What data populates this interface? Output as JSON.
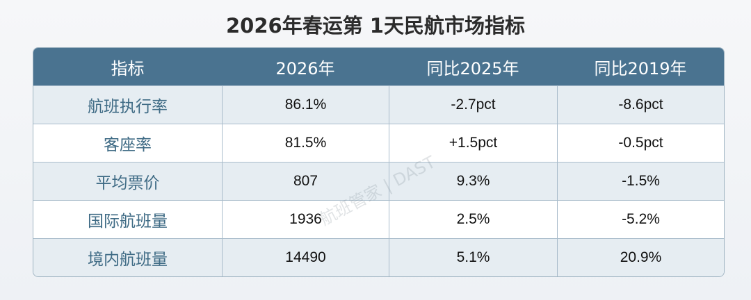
{
  "header": {
    "title": "2026年春运第 1天民航市场指标"
  },
  "table": {
    "columns": [
      "指标",
      "2026年",
      "同比2025年",
      "同比2019年"
    ],
    "rows": [
      [
        "航班执行率",
        "86.1%",
        "-2.7pct",
        "-8.6pct"
      ],
      [
        "客座率",
        "81.5%",
        "+1.5pct",
        "-0.5pct"
      ],
      [
        "平均票价",
        "807",
        "9.3%",
        "-1.5%"
      ],
      [
        "国际航班量",
        "1936",
        "2.5%",
        "-5.2%"
      ],
      [
        "境内航班量",
        "14490",
        "5.1%",
        "20.9%"
      ]
    ]
  },
  "watermark": "航班管家 | DAST"
}
